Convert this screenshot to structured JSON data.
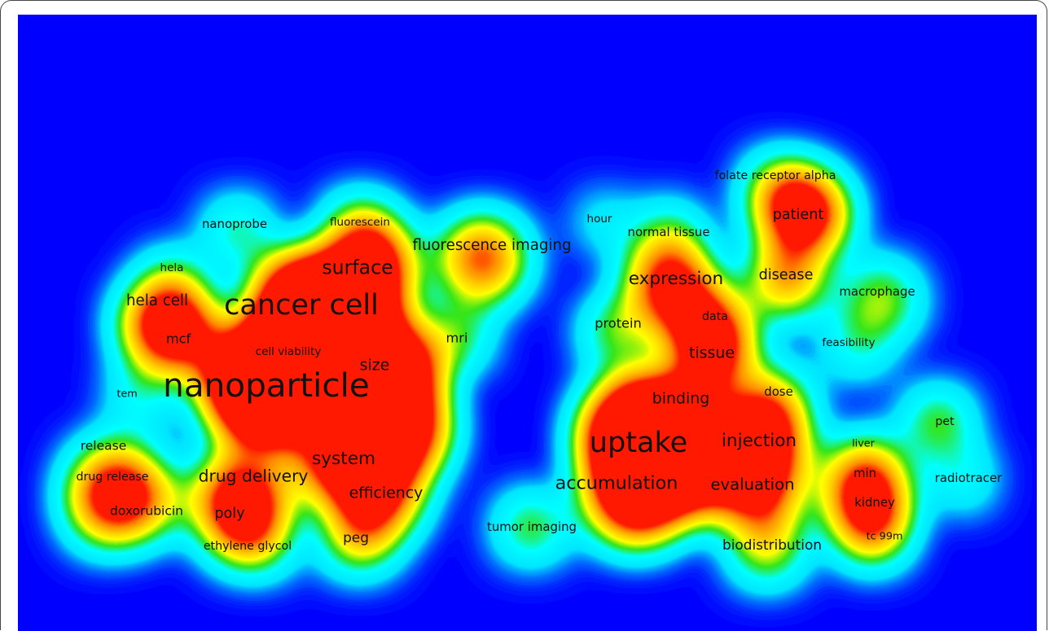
{
  "colors": {
    "background": "#0000ff",
    "scale": [
      "#0000ff",
      "#00ffff",
      "#00e000",
      "#ffff00",
      "#ffaa00",
      "#ff3300"
    ]
  },
  "terms": [
    {
      "label": "nanoparticle",
      "weight": 3.0
    },
    {
      "label": "cancer cell",
      "weight": 2.6
    },
    {
      "label": "uptake",
      "weight": 2.6
    },
    {
      "label": "surface",
      "weight": 1.75
    },
    {
      "label": "system",
      "weight": 1.6
    },
    {
      "label": "accumulation",
      "weight": 1.65
    },
    {
      "label": "expression",
      "weight": 1.6
    },
    {
      "label": "injection",
      "weight": 1.6
    },
    {
      "label": "drug delivery",
      "weight": 1.5
    },
    {
      "label": "tissue",
      "weight": 1.4
    },
    {
      "label": "evaluation",
      "weight": 1.45
    },
    {
      "label": "efficiency",
      "weight": 1.4
    },
    {
      "label": "hela cell",
      "weight": 1.35
    },
    {
      "label": "binding",
      "weight": 1.4
    },
    {
      "label": "size",
      "weight": 1.4
    },
    {
      "label": "poly",
      "weight": 1.3
    },
    {
      "label": "disease",
      "weight": 1.3
    },
    {
      "label": "patient",
      "weight": 1.3
    },
    {
      "label": "fluorescence imaging",
      "weight": 1.35
    },
    {
      "label": "biodistribution",
      "weight": 1.25
    },
    {
      "label": "peg",
      "weight": 1.25
    },
    {
      "label": "doxorubicin",
      "weight": 1.15
    },
    {
      "label": "mcf",
      "weight": 1.2
    },
    {
      "label": "mri",
      "weight": 1.2
    },
    {
      "label": "protein",
      "weight": 1.2
    },
    {
      "label": "release",
      "weight": 1.15
    },
    {
      "label": "min",
      "weight": 1.1
    },
    {
      "label": "kidney",
      "weight": 1.1
    },
    {
      "label": "data",
      "weight": 1.05
    },
    {
      "label": "dose",
      "weight": 1.1
    },
    {
      "label": "pet",
      "weight": 1.05
    },
    {
      "label": "macrophage",
      "weight": 1.1
    },
    {
      "label": "radiotracer",
      "weight": 1.1
    },
    {
      "label": "tumor imaging",
      "weight": 1.1
    },
    {
      "label": "normal tissue",
      "weight": 1.1
    },
    {
      "label": "nanoprobe",
      "weight": 1.1
    },
    {
      "label": "hela",
      "weight": 1.0
    },
    {
      "label": "fluorescein",
      "weight": 1.0
    },
    {
      "label": "folate receptor alpha",
      "weight": 1.05
    },
    {
      "label": "hour",
      "weight": 1.0
    },
    {
      "label": "feasibility",
      "weight": 1.0
    },
    {
      "label": "cell viability",
      "weight": 1.0
    },
    {
      "label": "tem",
      "weight": 0.95
    },
    {
      "label": "drug release",
      "weight": 1.05
    },
    {
      "label": "ethylene glycol",
      "weight": 1.05
    },
    {
      "label": "liver",
      "weight": 0.95
    },
    {
      "label": "tc 99m",
      "weight": 0.95
    }
  ]
}
